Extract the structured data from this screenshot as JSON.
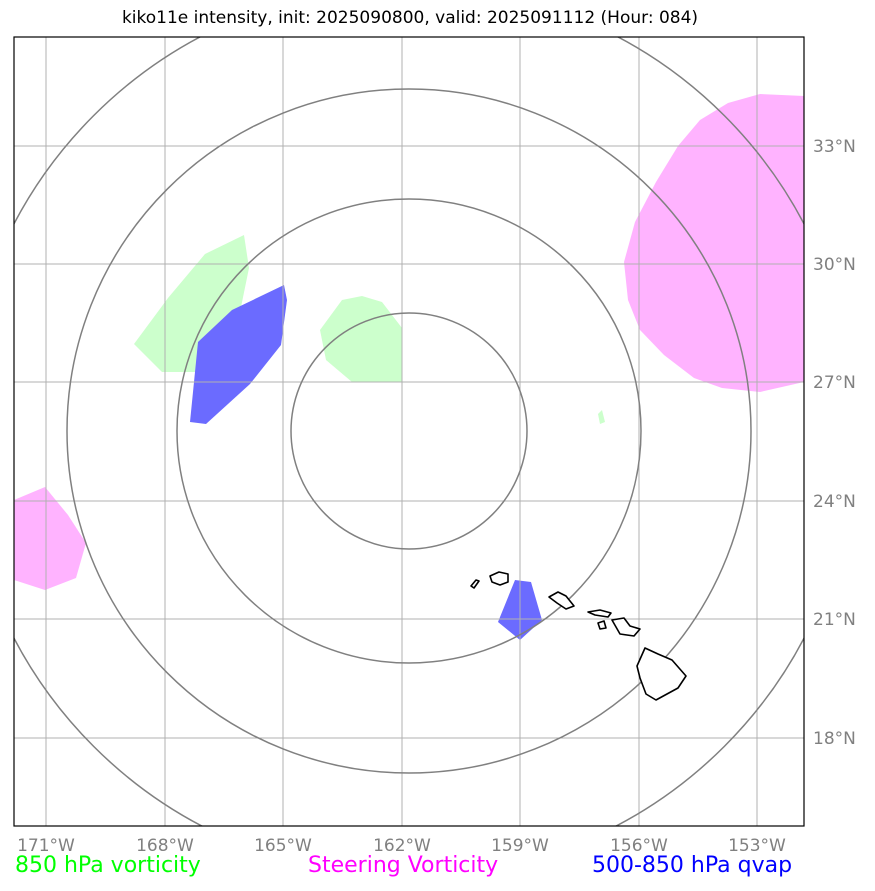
{
  "title": "kiko11e intensity, init: 2025090800, valid: 2025091112 (Hour: 084)",
  "lon_ticks": [
    "171°W",
    "168°W",
    "165°W",
    "162°W",
    "159°W",
    "156°W",
    "153°W"
  ],
  "lat_ticks": [
    "33°N",
    "30°N",
    "27°N",
    "24°N",
    "21°N",
    "18°N"
  ],
  "legend": [
    {
      "label": "850 hPa vorticity",
      "color": "#00ff00"
    },
    {
      "label": "Steering Vorticity",
      "color": "#ff00ff"
    },
    {
      "label": "500-850 hPa qvap",
      "color": "#0000ff"
    }
  ],
  "colors": {
    "vorticity_850": "#ccffcc",
    "steering_vorticity": "#ffb3ff",
    "qvap": "#6b6bff",
    "rings": "#808080",
    "grid": "#b0b0b0",
    "coast": "#000000"
  }
}
